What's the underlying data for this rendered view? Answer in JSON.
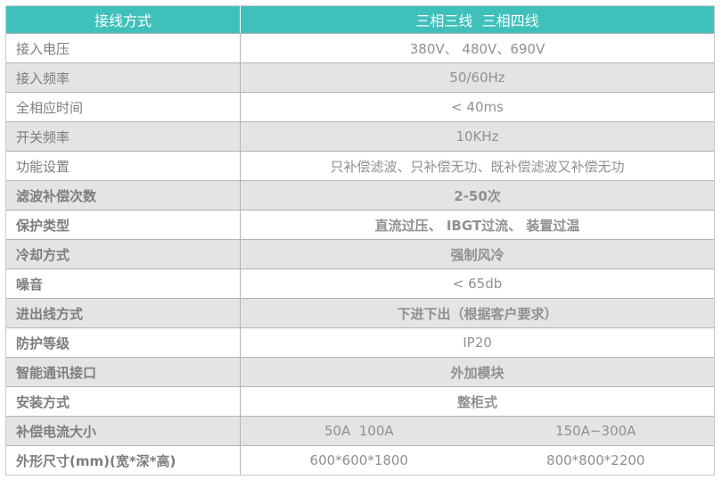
{
  "colors": {
    "header_bg": "#3fc0ba",
    "header_text": "#ffffff",
    "row_bg": "#ffffff",
    "row_alt_bg": "#e3e4e4",
    "border": "#b3b3b3",
    "label_text": "#7d7d7d",
    "value_text": "#909090"
  },
  "table": {
    "header": {
      "param_col": "接线方式",
      "value_col": "三相三线  三相四线"
    },
    "rows": [
      {
        "label": "接入电压",
        "value": "380V、 480V、690V"
      },
      {
        "label": "接入频率",
        "value": "50/60Hz"
      },
      {
        "label": "全相应时间",
        "value": "< 40ms"
      },
      {
        "label": "开关频率",
        "value": "10KHz"
      },
      {
        "label": "功能设置",
        "value": "只补偿滤波、只补偿无功、既补偿滤波又补偿无功"
      },
      {
        "label": "滤波补偿次数",
        "value": "2-50次"
      },
      {
        "label": "保护类型",
        "value": "直流过压、 IBGT过流、 装置过温"
      },
      {
        "label": "冷却方式",
        "value": "强制风冷"
      },
      {
        "label": "噪音",
        "value": "< 65db"
      },
      {
        "label": "进出线方式",
        "value": "下进下出（根据客户要求）"
      },
      {
        "label": "防护等级",
        "value": "IP20"
      },
      {
        "label": "智能通讯接口",
        "value": "外加模块"
      },
      {
        "label": "安装方式",
        "value": "整柜式"
      },
      {
        "label": "补偿电流大小",
        "values": [
          "50A  100A",
          "150A~300A"
        ]
      },
      {
        "label": "外形尺寸(mm)(宽*深*高)",
        "values": [
          "600*600*1800",
          "800*800*2200"
        ]
      }
    ]
  }
}
